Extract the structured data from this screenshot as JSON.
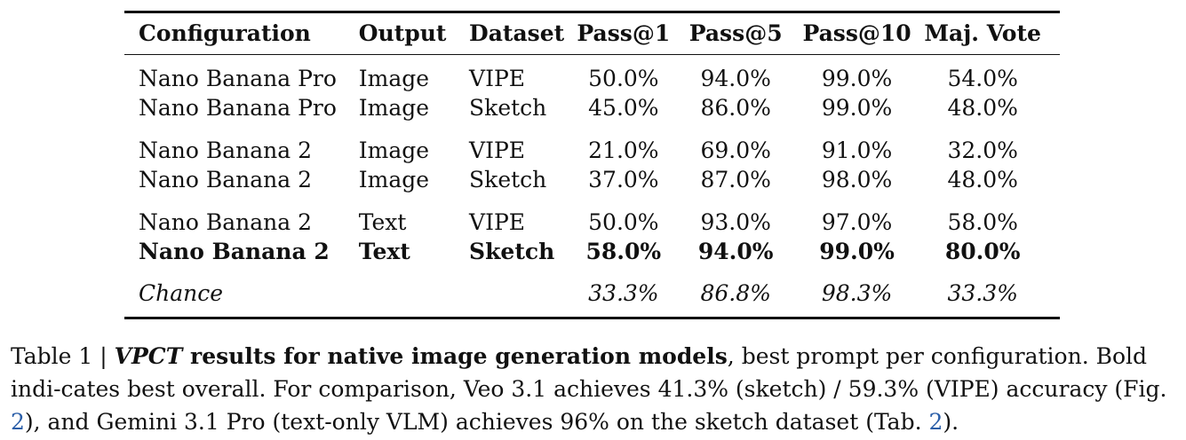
{
  "table": {
    "headers": [
      "Configuration",
      "Output",
      "Dataset",
      "Pass@1",
      "Pass@5",
      "Pass@10",
      "Maj. Vote"
    ],
    "rows": [
      [
        "Nano Banana Pro",
        "Image",
        "VIPE",
        "50.0%",
        "94.0%",
        "99.0%",
        "54.0%"
      ],
      [
        "Nano Banana Pro",
        "Image",
        "Sketch",
        "45.0%",
        "86.0%",
        "99.0%",
        "48.0%"
      ],
      [
        "Nano Banana 2",
        "Image",
        "VIPE",
        "21.0%",
        "69.0%",
        "91.0%",
        "32.0%"
      ],
      [
        "Nano Banana 2",
        "Image",
        "Sketch",
        "37.0%",
        "87.0%",
        "98.0%",
        "48.0%"
      ],
      [
        "Nano Banana 2",
        "Text",
        "VIPE",
        "50.0%",
        "93.0%",
        "97.0%",
        "58.0%"
      ],
      [
        "Nano Banana 2",
        "Text",
        "Sketch",
        "58.0%",
        "94.0%",
        "99.0%",
        "80.0%"
      ],
      [
        "Chance",
        "",
        "",
        "33.3%",
        "86.8%",
        "98.3%",
        "33.3%"
      ]
    ]
  },
  "caption": {
    "label": "Table 1 | ",
    "title_emph": "VPCT",
    "title_rest": " results for native image generation models",
    "text1": ", best prompt per configuration. Bold indi-cates best overall. For comparison, Veo 3.1 achieves 41.3% (sketch) / 59.3% (VIPE) accuracy (Fig. ",
    "ref_fig": "2",
    "text2": "), and Gemini 3.1 Pro (text-only VLM) achieves 96% on the sketch dataset (Tab. ",
    "ref_tab": "2",
    "text3": ")."
  }
}
